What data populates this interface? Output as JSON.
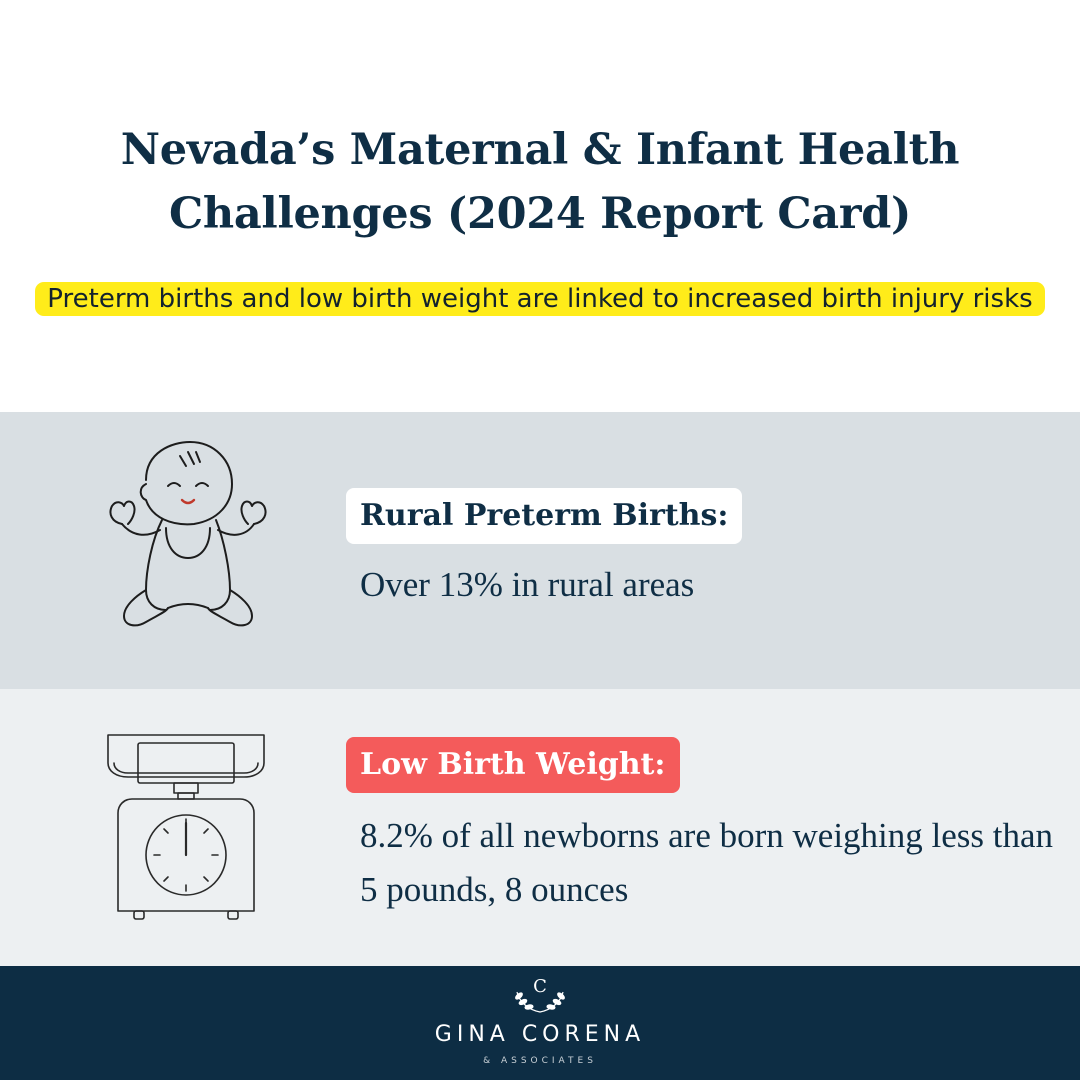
{
  "header": {
    "title": "Nevada’s Maternal & Infant Health Challenges (2024 Report Card)",
    "subtitle": "Preterm births and low birth weight are linked to increased birth injury risks"
  },
  "stats": [
    {
      "icon": "baby-icon",
      "label": "Rural Preterm Births:",
      "description": "Over 13% in rural areas",
      "label_bg": "#ffffff"
    },
    {
      "icon": "scale-icon",
      "label": "Low Birth Weight:",
      "description": "8.2% of all newborns are born weighing less than 5 pounds, 8 ounces",
      "label_bg": "#f45b5b"
    }
  ],
  "footer": {
    "logo_initial": "C",
    "brand_name": "GINA CORENA",
    "brand_sub": "& ASSOCIATES"
  },
  "colors": {
    "navy": "#0d2d44",
    "highlight_yellow": "#ffec1a",
    "accent_red": "#f45b5b",
    "row1_bg": "#d9dfe3",
    "row2_bg": "#edf0f2"
  }
}
